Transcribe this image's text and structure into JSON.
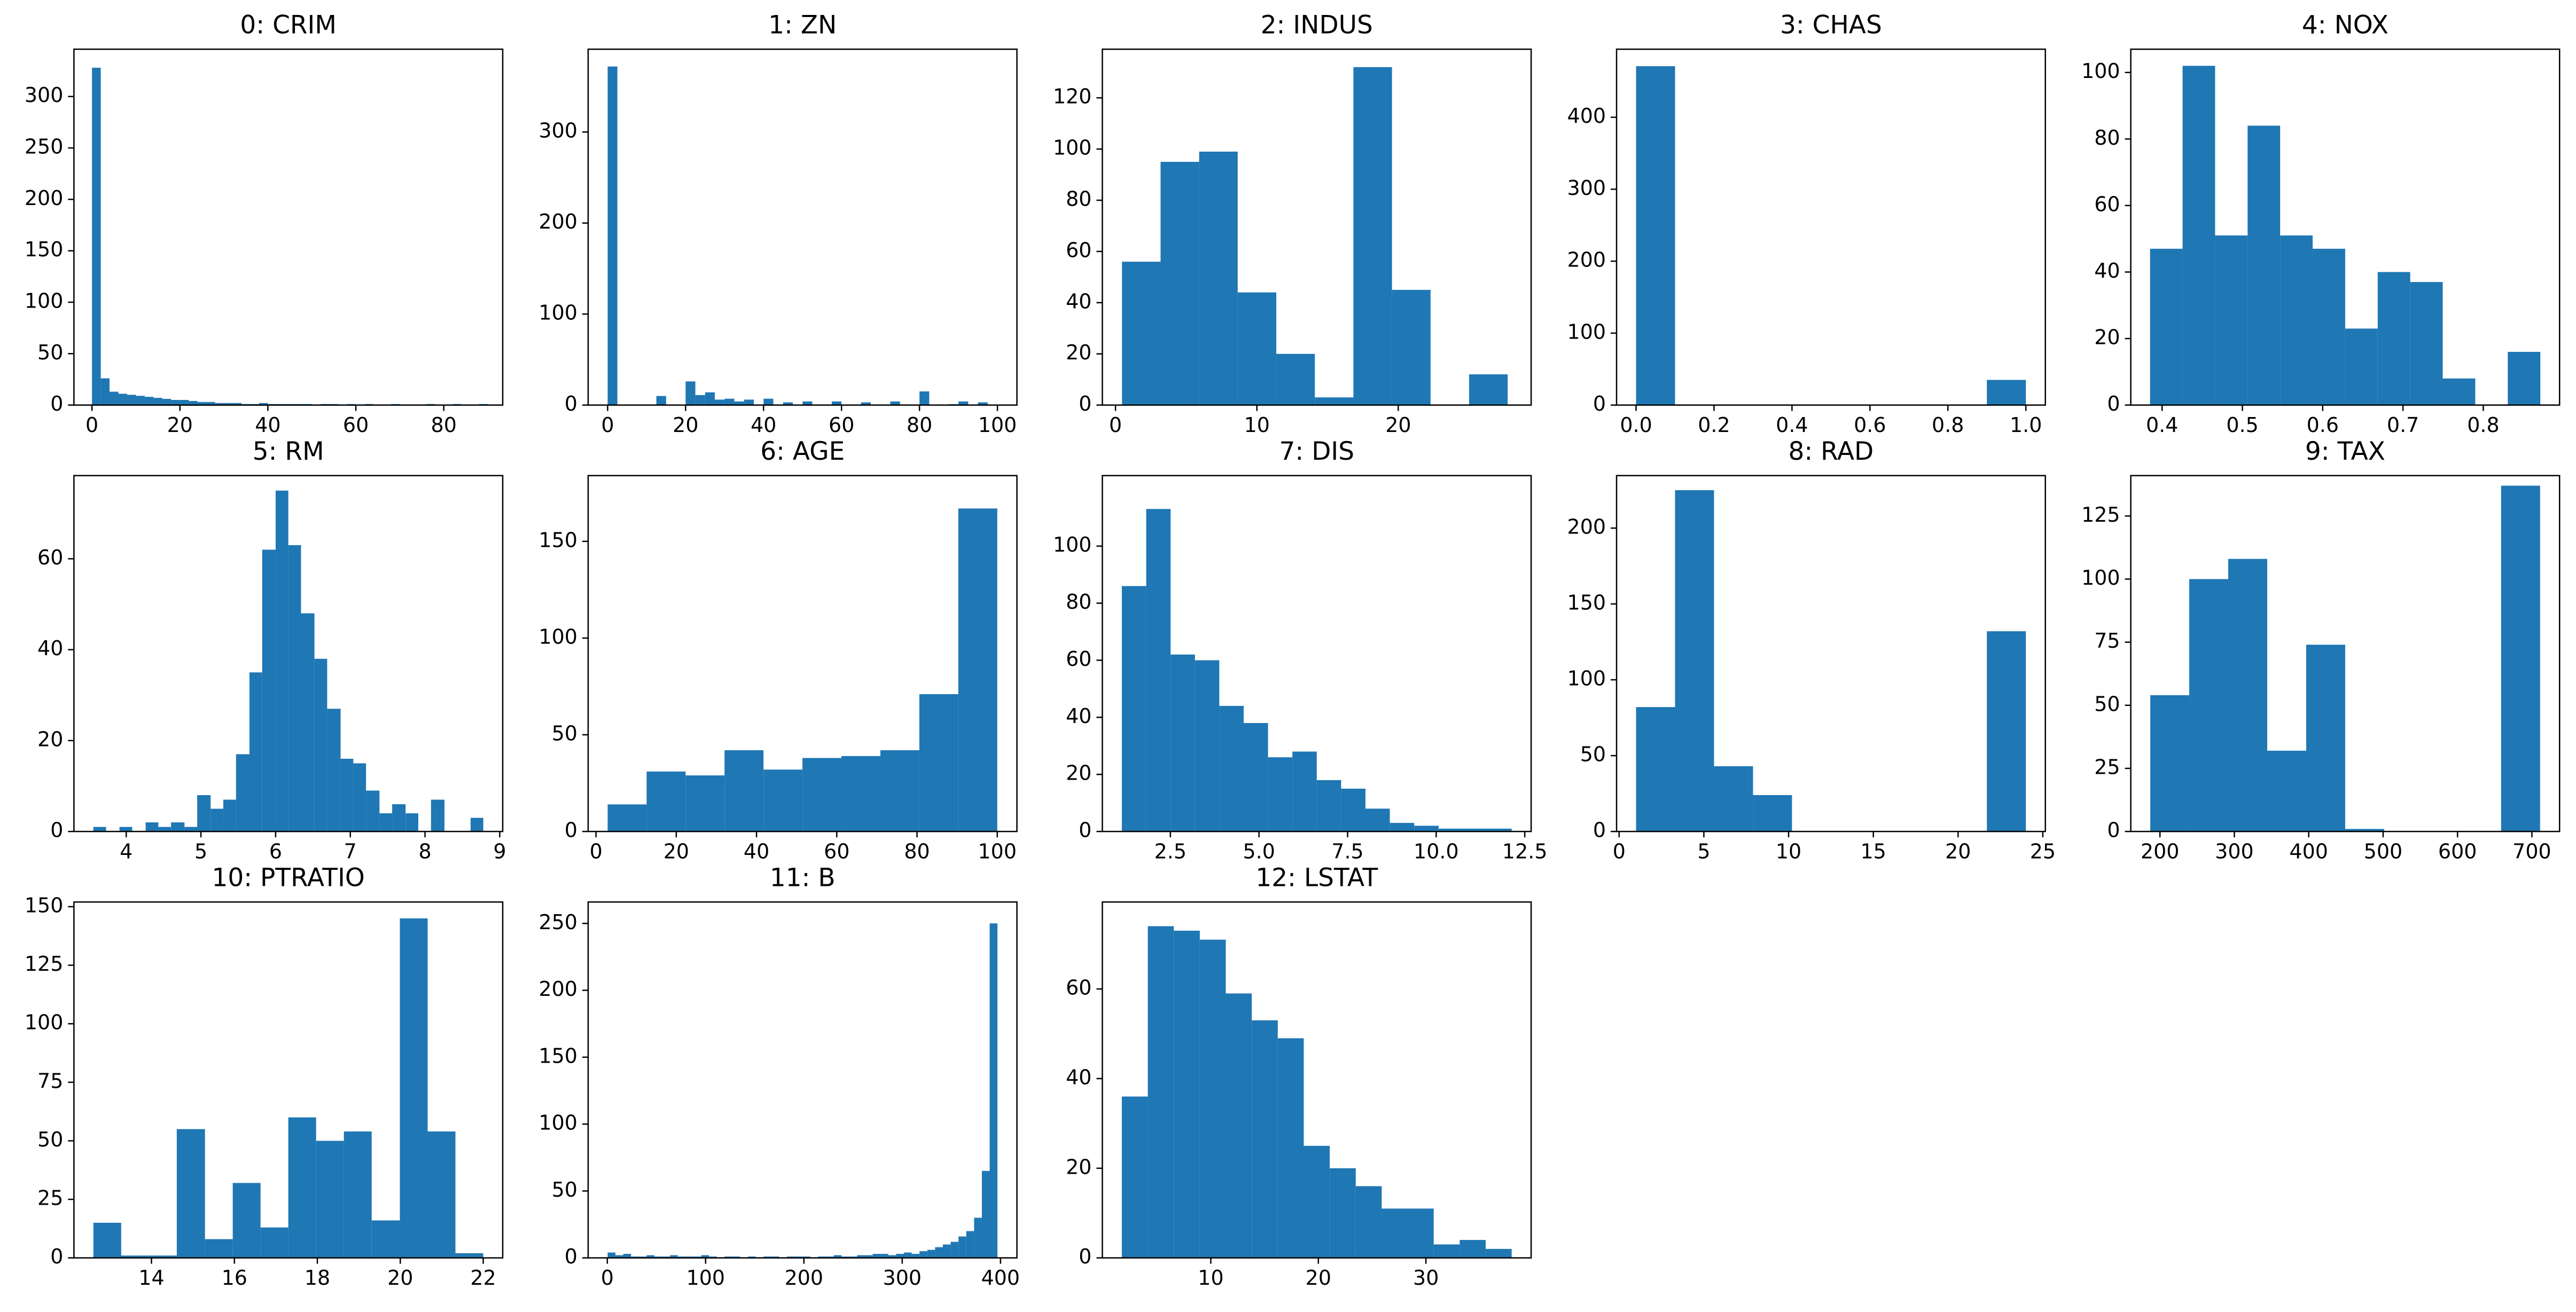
{
  "chart_data": [
    {
      "type": "histogram",
      "title": "0: CRIM",
      "color": "#1f77b4",
      "bins": [
        0,
        2,
        4,
        6,
        8,
        10,
        12,
        14,
        16,
        18,
        20,
        22,
        24,
        26,
        28,
        30,
        32,
        34,
        36,
        38,
        40,
        42,
        44,
        46,
        48,
        50,
        52,
        54,
        56,
        58,
        60,
        62,
        64,
        66,
        68,
        70,
        72,
        74,
        76,
        78,
        80,
        82,
        84,
        86,
        88,
        90
      ],
      "values": [
        328,
        26,
        13,
        11,
        10,
        9,
        8,
        7,
        6,
        5,
        5,
        4,
        3,
        3,
        2,
        2,
        2,
        1,
        1,
        2,
        1,
        1,
        1,
        1,
        1,
        0,
        1,
        1,
        0,
        1,
        0,
        1,
        0,
        0,
        1,
        0,
        0,
        0,
        1,
        0,
        0,
        1,
        0,
        0,
        1
      ],
      "xlim": [
        -4.1,
        93.4
      ],
      "xticks": [
        0,
        20,
        40,
        60,
        80
      ],
      "ylim": [
        0,
        346
      ],
      "yticks": [
        0,
        50,
        100,
        150,
        200,
        250,
        300
      ]
    },
    {
      "type": "histogram",
      "title": "1: ZN",
      "color": "#1f77b4",
      "bins": [
        0,
        2.5,
        5,
        7.5,
        10,
        12.5,
        15,
        17.5,
        20,
        22.5,
        25,
        27.5,
        30,
        32.5,
        35,
        37.5,
        40,
        42.5,
        45,
        47.5,
        50,
        52.5,
        55,
        57.5,
        60,
        62.5,
        65,
        67.5,
        70,
        72.5,
        75,
        77.5,
        80,
        82.5,
        85,
        87.5,
        90,
        92.5,
        95,
        97.5,
        100
      ],
      "values": [
        372,
        0,
        0,
        0,
        0,
        10,
        0,
        0,
        26,
        11,
        14,
        6,
        7,
        4,
        6,
        0,
        7,
        0,
        3,
        0,
        4,
        0,
        0,
        4,
        0,
        0,
        3,
        0,
        0,
        4,
        0,
        0,
        15,
        0,
        0,
        1,
        4,
        0,
        3,
        0
      ],
      "xlim": [
        -5,
        105
      ],
      "xticks": [
        0,
        20,
        40,
        60,
        80,
        100
      ],
      "ylim": [
        0,
        391
      ],
      "yticks": [
        0,
        100,
        200,
        300
      ]
    },
    {
      "type": "histogram",
      "title": "2: INDUS",
      "color": "#1f77b4",
      "bins": [
        0.46,
        3.188,
        5.916,
        8.644,
        11.372,
        14.1,
        16.828,
        19.556,
        22.284,
        25.012,
        27.74
      ],
      "values": [
        56,
        95,
        99,
        44,
        20,
        3,
        132,
        45,
        0,
        12
      ],
      "xlim": [
        -0.93,
        29.4
      ],
      "xticks": [
        0,
        10,
        20
      ],
      "ylim": [
        0,
        139
      ],
      "yticks": [
        0,
        20,
        40,
        60,
        80,
        100,
        120
      ]
    },
    {
      "type": "histogram",
      "title": "3: CHAS",
      "color": "#1f77b4",
      "bins": [
        0,
        0.1,
        0.2,
        0.3,
        0.4,
        0.5,
        0.6,
        0.7,
        0.8,
        0.9,
        1.0
      ],
      "values": [
        471,
        0,
        0,
        0,
        0,
        0,
        0,
        0,
        0,
        35
      ],
      "xlim": [
        -0.05,
        1.05
      ],
      "xticks": [
        {
          "value": 0,
          "label": "0.0"
        },
        0.2,
        0.4,
        0.6,
        0.8,
        {
          "value": 1,
          "label": "1.0"
        }
      ],
      "ylim": [
        0,
        494.6
      ],
      "yticks": [
        0,
        100,
        200,
        300,
        400
      ]
    },
    {
      "type": "histogram",
      "title": "4: NOX",
      "color": "#1f77b4",
      "bins": [
        0.385,
        0.4255,
        0.466,
        0.5065,
        0.547,
        0.5875,
        0.628,
        0.6685,
        0.709,
        0.7495,
        0.79,
        0.8305,
        0.871
      ],
      "values": [
        47,
        102,
        51,
        84,
        51,
        47,
        23,
        40,
        37,
        8,
        0,
        16
      ],
      "xlim": [
        0.361,
        0.895
      ],
      "xticks": [
        0.4,
        0.5,
        0.6,
        0.7,
        0.8
      ],
      "ylim": [
        0,
        107
      ],
      "yticks": [
        0,
        20,
        40,
        60,
        80,
        100
      ]
    },
    {
      "type": "histogram",
      "title": "5: RM",
      "color": "#1f77b4",
      "bins": [
        3.56,
        3.73,
        3.91,
        4.08,
        4.26,
        4.43,
        4.6,
        4.78,
        4.95,
        5.13,
        5.3,
        5.47,
        5.65,
        5.82,
        6.0,
        6.17,
        6.34,
        6.52,
        6.69,
        6.87,
        7.04,
        7.21,
        7.39,
        7.56,
        7.74,
        7.91,
        8.08,
        8.26,
        8.43,
        8.61,
        8.78
      ],
      "values": [
        1,
        0,
        1,
        0,
        2,
        1,
        2,
        1,
        8,
        5,
        7,
        17,
        35,
        62,
        75,
        63,
        48,
        38,
        27,
        16,
        15,
        9,
        4,
        6,
        4,
        0,
        7,
        0,
        0,
        3
      ],
      "xlim": [
        3.3,
        9.04
      ],
      "xticks": [
        4,
        5,
        6,
        7,
        8,
        9
      ],
      "ylim": [
        0,
        78.3
      ],
      "yticks": [
        0,
        20,
        40,
        60
      ]
    },
    {
      "type": "histogram",
      "title": "6: AGE",
      "color": "#1f77b4",
      "bins": [
        2.9,
        12.61,
        22.32,
        32.03,
        41.74,
        51.45,
        61.16,
        70.87,
        80.58,
        90.29,
        100
      ],
      "values": [
        14,
        31,
        29,
        42,
        32,
        38,
        39,
        42,
        71,
        167
      ],
      "xlim": [
        -1.96,
        104.9
      ],
      "xticks": [
        0,
        20,
        40,
        60,
        80,
        100
      ],
      "ylim": [
        0,
        184
      ],
      "yticks": [
        0,
        50,
        100,
        150
      ]
    },
    {
      "type": "histogram",
      "title": "7: DIS",
      "color": "#1f77b4",
      "bins": [
        1.13,
        1.8175,
        2.505,
        3.1925,
        3.88,
        4.5675,
        5.255,
        5.9425,
        6.63,
        7.3175,
        8.005,
        8.6925,
        9.38,
        10.0675,
        10.755,
        11.4425,
        12.13
      ],
      "values": [
        86,
        113,
        62,
        60,
        44,
        38,
        26,
        28,
        18,
        15,
        8,
        3,
        2,
        1,
        1,
        1
      ],
      "xlim": [
        0.58,
        12.68
      ],
      "xticks": [
        2.5,
        {
          "value": 5,
          "label": "5.0"
        },
        7.5,
        {
          "value": 10,
          "label": "10.0"
        },
        12.5
      ],
      "ylim": [
        0,
        124.7
      ],
      "yticks": [
        0,
        20,
        40,
        60,
        80,
        100
      ]
    },
    {
      "type": "histogram",
      "title": "8: RAD",
      "color": "#1f77b4",
      "bins": [
        1,
        3.3,
        5.6,
        7.9,
        10.2,
        12.5,
        14.8,
        17.1,
        19.4,
        21.7,
        24
      ],
      "values": [
        82,
        225,
        43,
        24,
        0,
        0,
        0,
        0,
        0,
        132
      ],
      "xlim": [
        -0.15,
        25.15
      ],
      "xticks": [
        0,
        5,
        10,
        15,
        20,
        25
      ],
      "ylim": [
        0,
        234.6
      ],
      "yticks": [
        0,
        50,
        100,
        150,
        200
      ]
    },
    {
      "type": "histogram",
      "title": "9: TAX",
      "color": "#1f77b4",
      "bins": [
        187,
        239.4,
        291.8,
        344.2,
        396.6,
        449,
        501.4,
        553.8,
        606.2,
        658.6,
        711
      ],
      "values": [
        54,
        100,
        108,
        32,
        74,
        1,
        0,
        0,
        0,
        137
      ],
      "xlim": [
        160.8,
        737.2
      ],
      "xticks": [
        200,
        300,
        400,
        500,
        600,
        700
      ],
      "ylim": [
        0,
        141
      ],
      "yticks": [
        0,
        25,
        50,
        75,
        100,
        125
      ]
    },
    {
      "type": "histogram",
      "title": "10: PTRATIO",
      "color": "#1f77b4",
      "bins": [
        12.6,
        13.27,
        13.94,
        14.61,
        15.29,
        15.96,
        16.63,
        17.3,
        17.97,
        18.64,
        19.31,
        19.99,
        20.66,
        21.33,
        22.0
      ],
      "values": [
        15,
        1,
        1,
        55,
        8,
        32,
        13,
        60,
        50,
        54,
        16,
        145,
        54,
        2
      ],
      "xlim": [
        12.13,
        22.47
      ],
      "xticks": [
        14,
        16,
        18,
        20,
        22
      ],
      "ylim": [
        0,
        152
      ],
      "yticks": [
        0,
        25,
        50,
        75,
        100,
        125,
        150
      ]
    },
    {
      "type": "histogram",
      "title": "11: B",
      "color": "#1f77b4",
      "bins": [
        0.32,
        8.25,
        16.18,
        24.11,
        32.05,
        39.98,
        47.91,
        55.84,
        63.77,
        71.7,
        79.64,
        87.57,
        95.5,
        103.43,
        111.36,
        119.29,
        127.23,
        135.16,
        143.09,
        151.02,
        158.95,
        166.88,
        174.82,
        182.75,
        190.68,
        198.61,
        206.54,
        214.47,
        222.4,
        230.34,
        238.27,
        246.2,
        254.13,
        262.06,
        269.99,
        277.93,
        285.86,
        293.79,
        301.72,
        309.65,
        317.58,
        325.52,
        333.45,
        341.38,
        349.31,
        357.24,
        365.17,
        373.11,
        381.04,
        388.97,
        396.9
      ],
      "values": [
        4,
        2,
        3,
        1,
        1,
        2,
        1,
        1,
        2,
        1,
        1,
        1,
        2,
        1,
        0,
        1,
        1,
        0,
        1,
        0,
        1,
        1,
        0,
        1,
        1,
        1,
        0,
        1,
        1,
        2,
        1,
        1,
        2,
        2,
        3,
        3,
        2,
        3,
        4,
        3,
        5,
        6,
        8,
        10,
        12,
        16,
        20,
        30,
        65,
        250
      ],
      "xlim": [
        -19.5,
        416.7
      ],
      "xticks": [
        0,
        100,
        200,
        300,
        400
      ],
      "ylim": [
        0,
        266
      ],
      "yticks": [
        0,
        50,
        100,
        150,
        200,
        250
      ]
    },
    {
      "type": "histogram",
      "title": "12: LSTAT",
      "color": "#1f77b4",
      "bins": [
        1.73,
        4.146,
        6.562,
        8.978,
        11.394,
        13.81,
        16.226,
        18.642,
        21.058,
        23.474,
        25.89,
        28.306,
        30.722,
        33.138,
        35.554,
        37.97
      ],
      "values": [
        36,
        74,
        73,
        71,
        59,
        53,
        49,
        25,
        20,
        16,
        11,
        11,
        3,
        4,
        2
      ],
      "xlim": [
        -0.08,
        39.78
      ],
      "xticks": [
        10,
        20,
        30
      ],
      "ylim": [
        0,
        79.4
      ],
      "yticks": [
        0,
        20,
        40,
        60
      ]
    }
  ]
}
